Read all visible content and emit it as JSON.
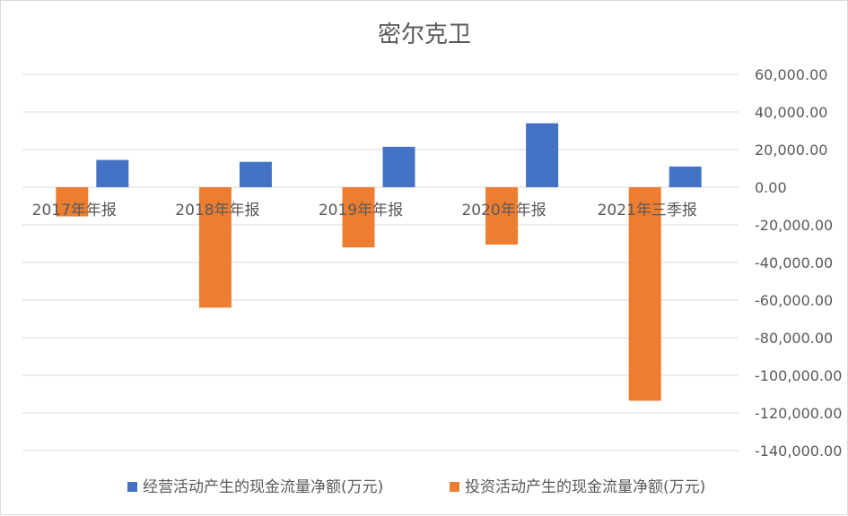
{
  "chart_data": {
    "type": "bar",
    "title": "密尔克卫",
    "categories": [
      "2017年年报",
      "2018年年报",
      "2019年年报",
      "2020年年报",
      "2021年三季报"
    ],
    "series": [
      {
        "name": "经营活动产生的现金流量净额(万元)",
        "color": "#4472C4",
        "values": [
          14500,
          13500,
          21500,
          34000,
          11000
        ]
      },
      {
        "name": "投资活动产生的现金流量净额(万元)",
        "color": "#ED7D31",
        "values": [
          -15500,
          -64000,
          -32000,
          -30500,
          -113500
        ]
      }
    ],
    "ylim": [
      -140000,
      60000
    ],
    "yticks": [
      60000,
      40000,
      20000,
      0,
      -20000,
      -40000,
      -60000,
      -80000,
      -100000,
      -120000,
      -140000
    ],
    "ytick_labels": [
      "60,000.00",
      "40,000.00",
      "20,000.00",
      "0.00",
      "-20,000.00",
      "-40,000.00",
      "-60,000.00",
      "-80,000.00",
      "-100,000.00",
      "-120,000.00",
      "-140,000.00"
    ],
    "y_axis_position": "right",
    "grid": true,
    "legend_position": "bottom"
  }
}
